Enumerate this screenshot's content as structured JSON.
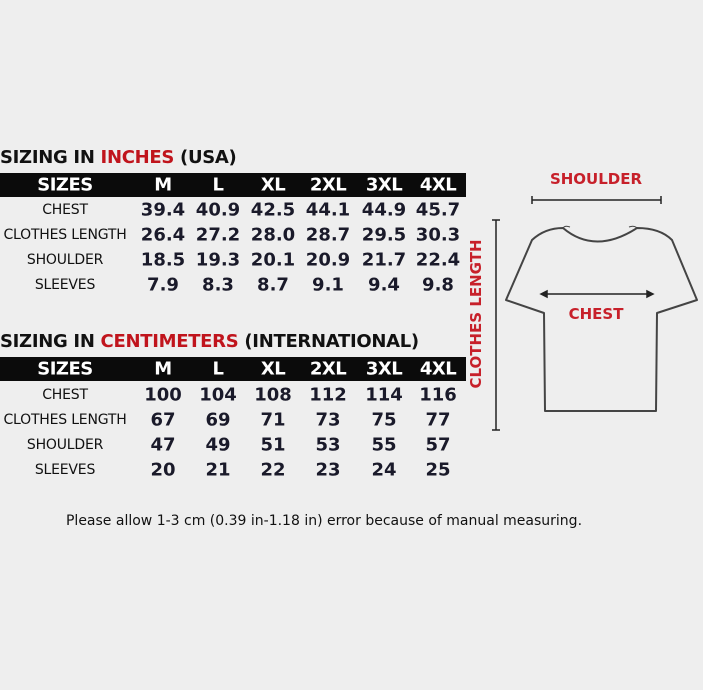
{
  "inches": {
    "title_prefix": "SIZING IN ",
    "title_highlight": "INCHES",
    "title_suffix": " (USA)",
    "header": [
      "SIZES",
      "M",
      "L",
      "XL",
      "2XL",
      "3XL",
      "4XL"
    ],
    "rows": [
      {
        "label": "CHEST",
        "values": [
          "39.4",
          "40.9",
          "42.5",
          "44.1",
          "44.9",
          "45.7"
        ]
      },
      {
        "label": "CLOTHES LENGTH",
        "values": [
          "26.4",
          "27.2",
          "28.0",
          "28.7",
          "29.5",
          "30.3"
        ]
      },
      {
        "label": "SHOULDER",
        "values": [
          "18.5",
          "19.3",
          "20.1",
          "20.9",
          "21.7",
          "22.4"
        ]
      },
      {
        "label": "SLEEVES",
        "values": [
          "7.9",
          "8.3",
          "8.7",
          "9.1",
          "9.4",
          "9.8"
        ]
      }
    ]
  },
  "centimeters": {
    "title_prefix": "SIZING IN ",
    "title_highlight": "CENTIMETERS",
    "title_suffix": " (INTERNATIONAL)",
    "header": [
      "SIZES",
      "M",
      "L",
      "XL",
      "2XL",
      "3XL",
      "4XL"
    ],
    "rows": [
      {
        "label": "CHEST",
        "values": [
          "100",
          "104",
          "108",
          "112",
          "114",
          "116"
        ]
      },
      {
        "label": "CLOTHES LENGTH",
        "values": [
          "67",
          "69",
          "71",
          "73",
          "75",
          "77"
        ]
      },
      {
        "label": "SHOULDER",
        "values": [
          "47",
          "49",
          "51",
          "53",
          "55",
          "57"
        ]
      },
      {
        "label": "SLEEVES",
        "values": [
          "20",
          "21",
          "22",
          "23",
          "24",
          "25"
        ]
      }
    ]
  },
  "note": "Please allow 1-3 cm (0.39 in-1.18 in) error because of manual measuring.",
  "diagram": {
    "shoulder_label": "SHOULDER",
    "chest_label": "CHEST",
    "length_label": "CLOTHES LENGTH",
    "icon": "t-shirt-icon"
  },
  "colors": {
    "accent": "#c0141c",
    "header_bg": "#0b0b0b",
    "background": "#eeeeee"
  }
}
